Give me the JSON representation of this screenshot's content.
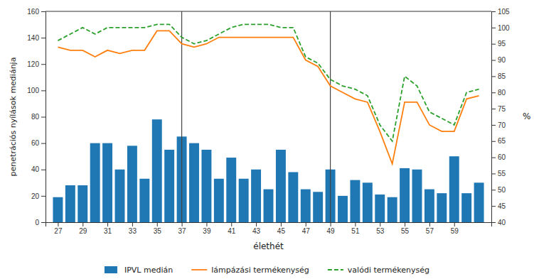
{
  "chart_data": {
    "type": "bar",
    "xlabel": "élethét",
    "ylabel": "penetrációs nyílások mediánja",
    "y2label": "%",
    "x": [
      27,
      28,
      29,
      30,
      31,
      32,
      33,
      34,
      35,
      36,
      37,
      38,
      39,
      40,
      41,
      42,
      43,
      44,
      45,
      46,
      47,
      48,
      49,
      50,
      51,
      52,
      53,
      54,
      55,
      56,
      57,
      58,
      59,
      60,
      61
    ],
    "series": [
      {
        "name": "IPVL medián",
        "type": "bar",
        "values": [
          19,
          28,
          28,
          60,
          60,
          40,
          58,
          33,
          78,
          55,
          65,
          60,
          55,
          33,
          49,
          33,
          40,
          25,
          55,
          38,
          25,
          23,
          40,
          20,
          32,
          30,
          21,
          19,
          41,
          40,
          25,
          22,
          50,
          22,
          30
        ]
      },
      {
        "name": "lámpázási termékenység",
        "type": "line",
        "axis": "y2",
        "line_style": "solid",
        "values": [
          94,
          93,
          93,
          91,
          93,
          92,
          93,
          93,
          99,
          99,
          95,
          94,
          95,
          97,
          97,
          97,
          97,
          97,
          97,
          97,
          90,
          88,
          82,
          80,
          78,
          77,
          68,
          58,
          77,
          77,
          70,
          68,
          68,
          78,
          79
        ]
      },
      {
        "name": "valódi termékenység",
        "type": "line",
        "axis": "y2",
        "line_style": "dashed",
        "values": [
          96,
          98,
          100,
          98,
          100,
          100,
          100,
          100,
          101,
          101,
          97,
          95,
          96,
          98,
          100,
          101,
          101,
          101,
          100,
          100,
          91,
          89,
          84,
          82,
          81,
          79,
          70,
          65,
          85,
          82,
          74,
          72,
          70,
          80,
          81
        ]
      }
    ],
    "vlines": [
      37,
      49
    ],
    "xlim": [
      26,
      62
    ],
    "xticks": [
      27,
      29,
      31,
      33,
      35,
      37,
      39,
      41,
      43,
      45,
      47,
      49,
      51,
      53,
      55,
      57,
      59
    ],
    "ylim": [
      0,
      160
    ],
    "yticks": [
      0,
      20,
      40,
      60,
      80,
      100,
      120,
      140,
      160
    ],
    "y2lim": [
      40,
      105
    ],
    "y2ticks": [
      40,
      45,
      50,
      55,
      60,
      65,
      70,
      75,
      80,
      85,
      90,
      95,
      100,
      105
    ],
    "grid": false,
    "legend": "bottom"
  }
}
